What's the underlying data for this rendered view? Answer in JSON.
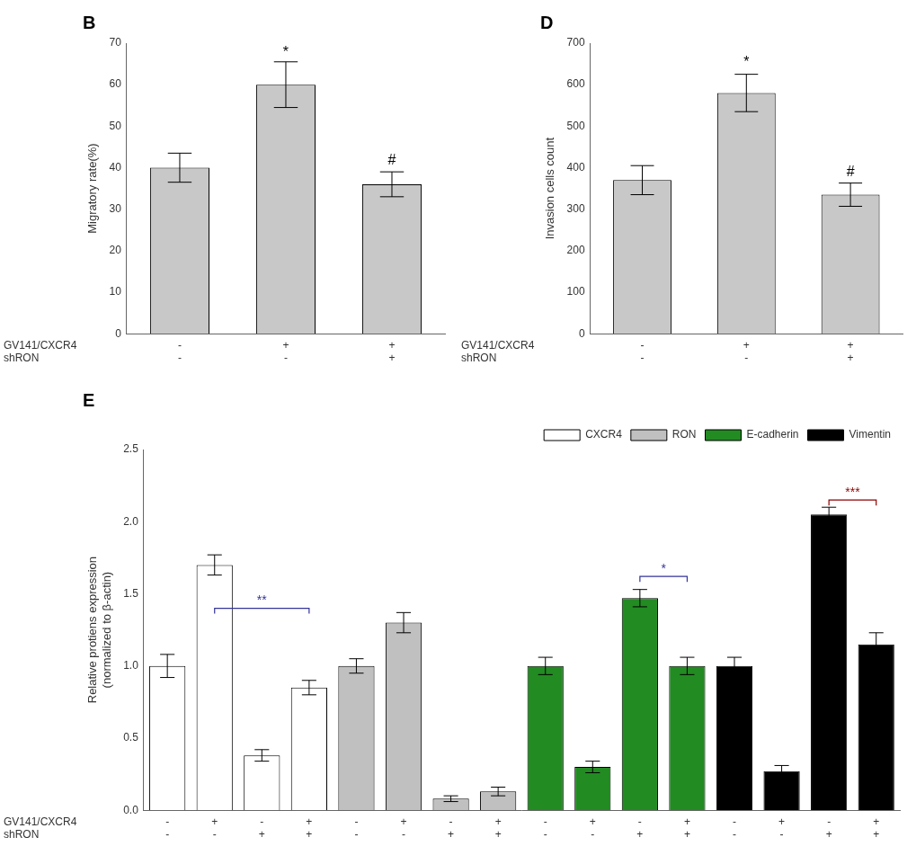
{
  "chart_data": [
    {
      "type": "bar",
      "title": "B",
      "categories": [
        [
          "-",
          "-"
        ],
        [
          "+",
          "-"
        ],
        [
          "+",
          "+"
        ]
      ],
      "category_levels": [
        "GV141/CXCR4",
        "shRON"
      ],
      "values": [
        40,
        60,
        36
      ],
      "errors": [
        3.5,
        5.5,
        3.0
      ],
      "color": "#c8c8c8",
      "ylabel": "Migratory rate(%)",
      "ylim": [
        0,
        70
      ],
      "yticks": [
        0,
        10,
        20,
        30,
        40,
        50,
        60,
        70
      ],
      "annotations": [
        {
          "text": "*",
          "x": 1,
          "y": 66
        },
        {
          "text": "#",
          "x": 2,
          "y": 40
        }
      ],
      "grid": false
    },
    {
      "type": "bar",
      "title": "D",
      "categories": [
        [
          "-",
          "-"
        ],
        [
          "+",
          "-"
        ],
        [
          "+",
          "+"
        ]
      ],
      "category_levels": [
        "GV141/CXCR4",
        "shRON"
      ],
      "values": [
        370,
        580,
        335
      ],
      "errors": [
        35,
        45,
        28
      ],
      "color": "#c8c8c8",
      "ylabel": "Invasion cells count",
      "ylim": [
        0,
        700
      ],
      "yticks": [
        0,
        100,
        200,
        300,
        400,
        500,
        600,
        700
      ],
      "annotations": [
        {
          "text": "*",
          "x": 1,
          "y": 635
        },
        {
          "text": "#",
          "x": 2,
          "y": 372
        }
      ],
      "grid": false
    },
    {
      "type": "bar",
      "title": "E",
      "categories": [
        [
          "-",
          "-"
        ],
        [
          "+",
          "-"
        ],
        [
          "-",
          "+"
        ],
        [
          "+",
          "+"
        ],
        [
          "-",
          "-"
        ],
        [
          "+",
          "-"
        ],
        [
          "-",
          "+"
        ],
        [
          "+",
          "+"
        ],
        [
          "-",
          "-"
        ],
        [
          "+",
          "-"
        ],
        [
          "-",
          "+"
        ],
        [
          "+",
          "+"
        ],
        [
          "-",
          "-"
        ],
        [
          "+",
          "-"
        ],
        [
          "-",
          "+"
        ],
        [
          "+",
          "+"
        ]
      ],
      "category_levels": [
        "GV141/CXCR4",
        "shRON"
      ],
      "series": [
        {
          "name": "CXCR4",
          "color": "#ffffff",
          "values": [
            1.0,
            1.7,
            0.38,
            0.85,
            null,
            null,
            null,
            null,
            null,
            null,
            null,
            null,
            null,
            null,
            null,
            null
          ],
          "errors": [
            0.08,
            0.07,
            0.04,
            0.05,
            null,
            null,
            null,
            null,
            null,
            null,
            null,
            null,
            null,
            null,
            null,
            null
          ]
        },
        {
          "name": "RON",
          "color": "#c0c0c0",
          "values": [
            null,
            null,
            null,
            null,
            1.0,
            1.3,
            0.08,
            0.13,
            null,
            null,
            null,
            null,
            null,
            null,
            null,
            null
          ],
          "errors": [
            null,
            null,
            null,
            null,
            0.05,
            0.07,
            0.02,
            0.03,
            null,
            null,
            null,
            null,
            null,
            null,
            null,
            null
          ]
        },
        {
          "name": "E-cadherin",
          "color": "#228b22",
          "values": [
            null,
            null,
            null,
            null,
            null,
            null,
            null,
            null,
            1.0,
            0.3,
            1.47,
            1.0,
            null,
            null,
            null,
            null
          ],
          "errors": [
            null,
            null,
            null,
            null,
            null,
            null,
            null,
            null,
            0.06,
            0.04,
            0.06,
            0.06,
            null,
            null,
            null,
            null
          ]
        },
        {
          "name": "Vimentin",
          "color": "#000000",
          "values": [
            null,
            null,
            null,
            null,
            null,
            null,
            null,
            null,
            null,
            null,
            null,
            null,
            1.0,
            0.27,
            2.05,
            1.15
          ],
          "errors": [
            null,
            null,
            null,
            null,
            null,
            null,
            null,
            null,
            null,
            null,
            null,
            null,
            0.06,
            0.04,
            0.05,
            0.08
          ]
        }
      ],
      "ylabel": "Relative protiens expression\n(normalized to β-actin)",
      "ylim": [
        0,
        2.5
      ],
      "yticks": [
        {
          "value": 0,
          "label": "0.0"
        },
        {
          "value": 0.5,
          "label": "0.5"
        },
        {
          "value": 1.0,
          "label": "1.0"
        },
        {
          "value": 1.5,
          "label": "1.5"
        },
        {
          "value": 2.0,
          "label": "2.0"
        },
        {
          "value": 2.5,
          "label": "2.5"
        }
      ],
      "annotations": [
        {
          "text": "**",
          "x": [
            1,
            3
          ],
          "y": 1.4,
          "color": "#333399"
        },
        {
          "text": "*",
          "x": [
            10,
            11
          ],
          "y": 1.62,
          "color": "#333399"
        },
        {
          "text": "***",
          "x": [
            14,
            15
          ],
          "y": 2.15,
          "color": "#8b0000"
        }
      ],
      "legend": "upper right",
      "grid": false
    }
  ]
}
